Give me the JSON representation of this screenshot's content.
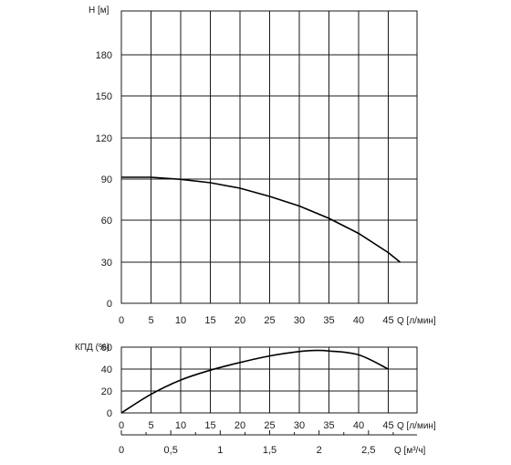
{
  "chart_data": [
    {
      "type": "line",
      "ylabel": "H [м]",
      "xlabel": "Q [л/мин]",
      "xlim": [
        0,
        50
      ],
      "ylim": [
        0,
        210
      ],
      "grid": true,
      "x_ticks": [
        "0",
        "5",
        "10",
        "15",
        "20",
        "25",
        "30",
        "35",
        "40",
        "45"
      ],
      "y_ticks": [
        "0",
        "30",
        "60",
        "90",
        "120",
        "150",
        "180"
      ],
      "series": [
        {
          "x": [
            0,
            5,
            10,
            15,
            20,
            25,
            30,
            35,
            40,
            45,
            47
          ],
          "y": [
            92,
            92,
            90.5,
            88,
            84,
            78,
            71,
            62,
            51,
            37,
            30
          ]
        }
      ]
    },
    {
      "type": "line",
      "ylabel": "КПД (%)",
      "xlabel": "Q [л/мин]",
      "xlim": [
        0,
        50
      ],
      "ylim": [
        0,
        60
      ],
      "grid": true,
      "x_ticks": [
        "0",
        "5",
        "10",
        "15",
        "20",
        "25",
        "30",
        "35",
        "40",
        "45"
      ],
      "y_ticks": [
        "0",
        "20",
        "40",
        "60"
      ],
      "series": [
        {
          "x": [
            0,
            5,
            10,
            15,
            20,
            25,
            30,
            33,
            35,
            40,
            45
          ],
          "y": [
            0,
            17,
            30,
            39,
            46,
            52,
            56,
            57,
            56.5,
            53,
            40
          ]
        }
      ]
    },
    {
      "type": "axis",
      "xlabel": "Q [м³/ч]",
      "xlim": [
        0,
        3
      ],
      "x_ticks": [
        "0",
        "0,5",
        "1",
        "1,5",
        "2",
        "2,5"
      ],
      "x_tick_values": [
        0,
        0.5,
        1,
        1.5,
        2,
        2.5
      ]
    }
  ]
}
